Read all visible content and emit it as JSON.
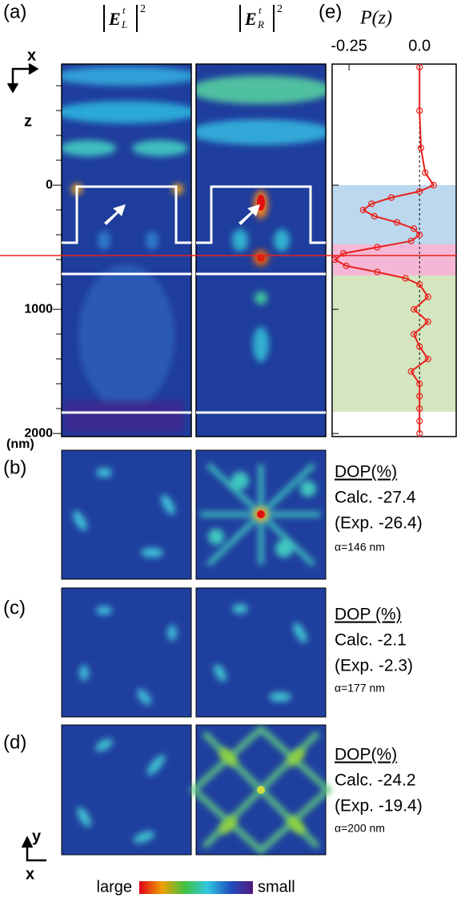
{
  "labels": {
    "a": "(a)",
    "b": "(b)",
    "c": "(c)",
    "d": "(d)",
    "e": "(e)"
  },
  "headers": {
    "left": {
      "base": "E",
      "sub": "L",
      "sup": "t",
      "pow": "2"
    },
    "right": {
      "base": "E",
      "sub": "R",
      "sup": "t",
      "pow": "2"
    }
  },
  "axes": {
    "x_top": "x",
    "z": "z",
    "unit": "(nm)",
    "y_bottom": "y",
    "x_bottom": "x"
  },
  "dop": [
    {
      "title": "DOP(%)",
      "calc": "Calc. -27.4",
      "exp": "(Exp. -26.4)",
      "alpha": "α=146 nm"
    },
    {
      "title": "DOP (%)",
      "calc": "Calc.  -2.1",
      "exp": "(Exp. -2.3)",
      "alpha": "α=177 nm"
    },
    {
      "title": "DOP(%)",
      "calc": "Calc. -24.2",
      "exp": "(Exp. -19.4)",
      "alpha": "α=200 nm"
    }
  ],
  "colorbar": {
    "low_label": "large",
    "high_label": "small"
  },
  "chart_data": {
    "type": "line",
    "title": "P(z)",
    "x": [
      -950,
      -600,
      -300,
      -100,
      0,
      50,
      100,
      150,
      200,
      250,
      300,
      350,
      400,
      450,
      500,
      550,
      600,
      650,
      700,
      750,
      800,
      900,
      1000,
      1100,
      1200,
      1300,
      1400,
      1500,
      1600,
      1700,
      1800,
      1900,
      2000
    ],
    "series": [
      {
        "name": "P(z)",
        "color": "#e8201c",
        "values": [
          0.0,
          0.0,
          0.005,
          0.02,
          0.05,
          0.0,
          -0.1,
          -0.17,
          -0.2,
          -0.16,
          -0.08,
          -0.02,
          0.0,
          -0.03,
          -0.15,
          -0.27,
          -0.3,
          -0.26,
          -0.15,
          -0.05,
          0.0,
          0.03,
          -0.02,
          0.03,
          -0.02,
          0.0,
          0.03,
          -0.03,
          0.0,
          0.0,
          0.0,
          0.0,
          0.0
        ]
      }
    ],
    "xlim": [
      -0.31,
      0.13
    ],
    "xticks": [
      {
        "value": -0.25,
        "label": "-0.25"
      },
      {
        "value": 0,
        "label": "0.0"
      }
    ],
    "ylim": [
      -975,
      2025
    ],
    "yticks": [
      0,
      1000,
      2000
    ]
  }
}
